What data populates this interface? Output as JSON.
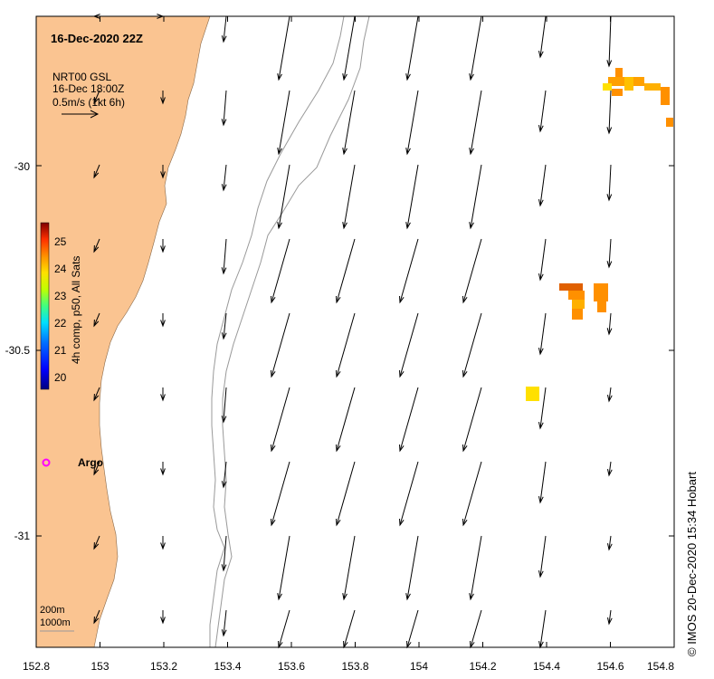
{
  "title": "16-Dec-2020 22Z",
  "legend_block": {
    "line1": "NRT00 GSL",
    "line2": "16-Dec 18:00Z",
    "line3": "0.5m/s (1kt 6h)"
  },
  "colorbar": {
    "label": "4h comp, p50, All Sats",
    "ticks": [
      "20",
      "21",
      "22",
      "23",
      "24",
      "25"
    ],
    "colors": [
      "#00007f",
      "#0000ff",
      "#0070ff",
      "#00e0ff",
      "#40ff80",
      "#c0ff00",
      "#ffe000",
      "#ff9000",
      "#ff3000",
      "#800000"
    ]
  },
  "x_axis": {
    "labels": [
      "152.8",
      "153",
      "153.2",
      "153.4",
      "153.6",
      "153.8",
      "154",
      "154.2",
      "154.4",
      "154.6",
      "154.8"
    ]
  },
  "y_axis": {
    "labels": [
      "-30",
      "-30.5",
      "-31"
    ]
  },
  "argo": {
    "label": "Argo",
    "color": "#ff00ff"
  },
  "isobath_labels": {
    "shallow": "200m",
    "deep": "1000m"
  },
  "credit": "© IMOS 20-Dec-2020 15:34 Hobart",
  "colors": {
    "land": "#fac491",
    "sst_warm": "#ff9000",
    "sst_hot": "#e06000",
    "sst_yellow": "#ffe000"
  }
}
